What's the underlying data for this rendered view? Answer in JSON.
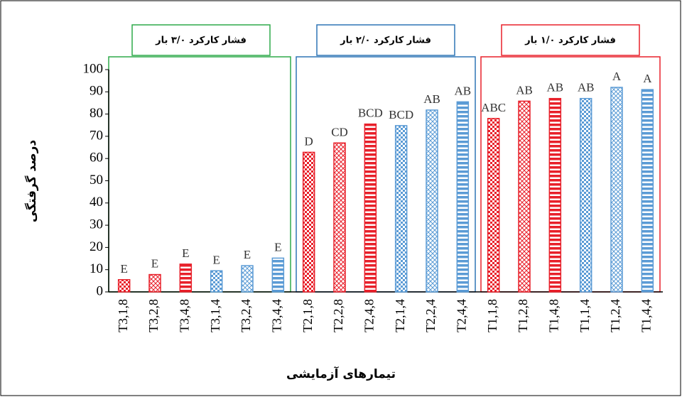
{
  "chart_data": {
    "type": "bar",
    "y_label": "درصد گرفتگی",
    "x_label": "تیمارهای آزمایشی",
    "categories": [
      "T3,1,8",
      "T3,2,8",
      "T3,4,8",
      "T3,1,4",
      "T3,2,4",
      "T3,4,4",
      "T2,1,8",
      "T2,2,8",
      "T2,4,8",
      "T2,1,4",
      "T2,2,4",
      "T2,4,4",
      "T1,1,8",
      "T1,2,8",
      "T1,4,8",
      "T1,1,4",
      "T1,2,4",
      "T1,4,4"
    ],
    "values": [
      5.5,
      7.8,
      12.5,
      9.5,
      11.8,
      15.2,
      62.8,
      67,
      75.5,
      74.8,
      81.8,
      85.5,
      78,
      85.8,
      87,
      87,
      92,
      91
    ],
    "annotations": [
      "E",
      "E",
      "E",
      "E",
      "E",
      "E",
      "D",
      "CD",
      "BCD",
      "BCD",
      "AB",
      "AB",
      "ABC",
      "AB",
      "AB",
      "AB",
      "A",
      "A"
    ],
    "colors": [
      "#e8202a",
      "#e8202a",
      "#e8202a",
      "#5b9bd5",
      "#5b9bd5",
      "#5b9bd5",
      "#e8202a",
      "#e8202a",
      "#e8202a",
      "#5b9bd5",
      "#5b9bd5",
      "#5b9bd5",
      "#e8202a",
      "#e8202a",
      "#e8202a",
      "#5b9bd5",
      "#5b9bd5",
      "#5b9bd5"
    ],
    "patterns": [
      "checker",
      "diagonal",
      "stripes",
      "checker",
      "diagonal",
      "stripes",
      "checker",
      "diagonal",
      "stripes",
      "checker",
      "diagonal",
      "stripes",
      "checker",
      "diagonal",
      "stripes",
      "checker",
      "diagonal",
      "stripes"
    ],
    "groups": [
      {
        "label": "فشار کارکرد ۳/۰ بار",
        "color": "#2eaa4a",
        "size": 6
      },
      {
        "label": "فشار کارکرد ۲/۰ بار",
        "color": "#2e75b6",
        "size": 6
      },
      {
        "label": "فشار کارکرد ۱/۰ بار",
        "color": "#e8202a",
        "size": 6
      }
    ],
    "ylim": [
      0,
      100
    ],
    "yticks": [
      0,
      10,
      20,
      30,
      40,
      50,
      60,
      70,
      80,
      90,
      100
    ]
  }
}
